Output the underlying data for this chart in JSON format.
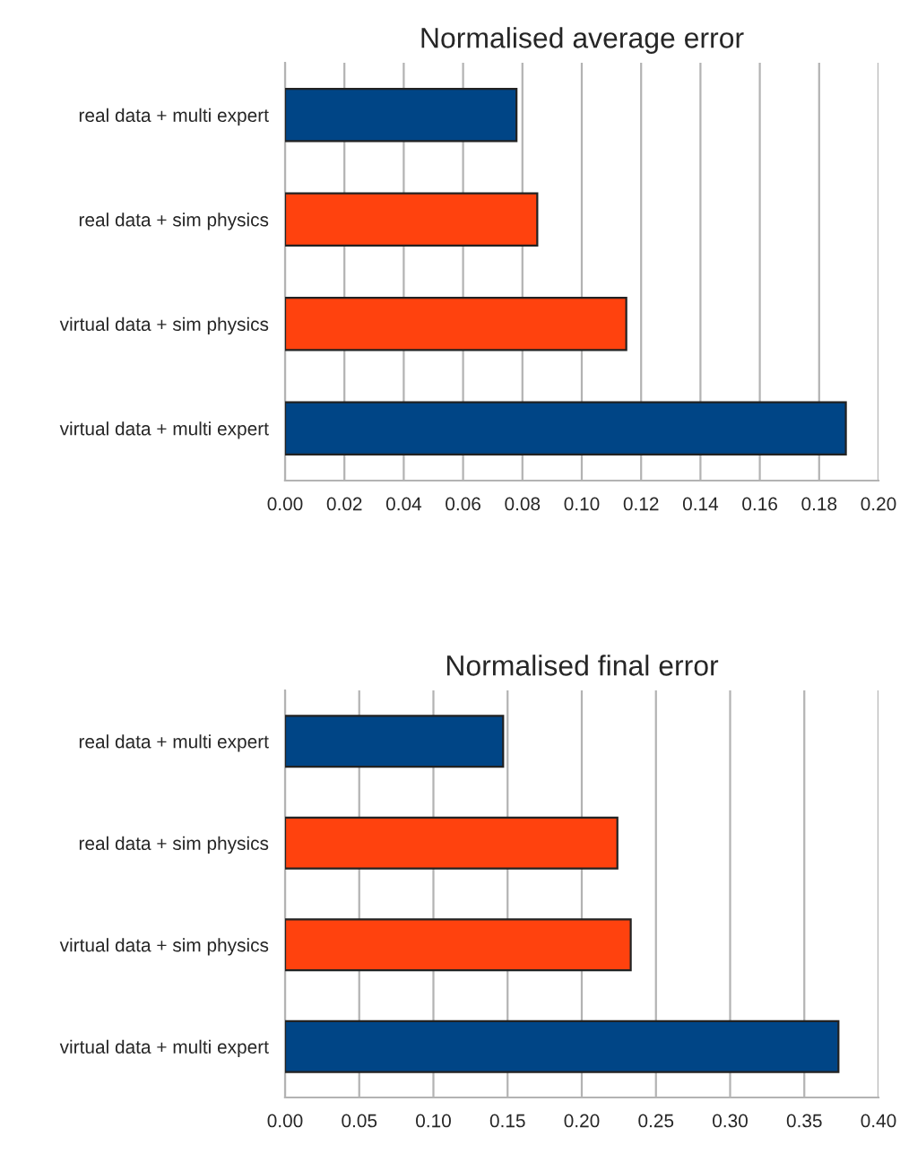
{
  "chart_data": [
    {
      "type": "bar",
      "orientation": "horizontal",
      "title": "Normalised average error",
      "categories": [
        "real data + multi expert",
        "real data + sim physics",
        "virtual data + sim physics",
        "virtual data + multi expert"
      ],
      "values": [
        0.078,
        0.085,
        0.115,
        0.189
      ],
      "colors": [
        "#004586",
        "#ff420e",
        "#ff420e",
        "#004586"
      ],
      "xlim": [
        0,
        0.2
      ],
      "xticks": [
        {
          "value": 0,
          "label": "0.00"
        },
        {
          "value": 0.02,
          "label": "0.02"
        },
        {
          "value": 0.04,
          "label": "0.04"
        },
        {
          "value": 0.06,
          "label": "0.06"
        },
        {
          "value": 0.08,
          "label": "0.08"
        },
        {
          "value": 0.1,
          "label": "0.10"
        },
        {
          "value": 0.12,
          "label": "0.12"
        },
        {
          "value": 0.14,
          "label": "0.14"
        },
        {
          "value": 0.16,
          "label": "0.16"
        },
        {
          "value": 0.18,
          "label": "0.18"
        },
        {
          "value": 0.2,
          "label": "0.20"
        }
      ],
      "grid": "x"
    },
    {
      "type": "bar",
      "orientation": "horizontal",
      "title": "Normalised final error",
      "categories": [
        "real data + multi expert",
        "real data + sim physics",
        "virtual data + sim physics",
        "virtual data + multi expert"
      ],
      "values": [
        0.147,
        0.224,
        0.233,
        0.373
      ],
      "colors": [
        "#004586",
        "#ff420e",
        "#ff420e",
        "#004586"
      ],
      "xlim": [
        0,
        0.4
      ],
      "xticks": [
        {
          "value": 0,
          "label": "0.00"
        },
        {
          "value": 0.05,
          "label": "0.05"
        },
        {
          "value": 0.1,
          "label": "0.10"
        },
        {
          "value": 0.15,
          "label": "0.15"
        },
        {
          "value": 0.2,
          "label": "0.20"
        },
        {
          "value": 0.25,
          "label": "0.25"
        },
        {
          "value": 0.3,
          "label": "0.30"
        },
        {
          "value": 0.35,
          "label": "0.35"
        },
        {
          "value": 0.4,
          "label": "0.40"
        }
      ],
      "grid": "x"
    }
  ]
}
